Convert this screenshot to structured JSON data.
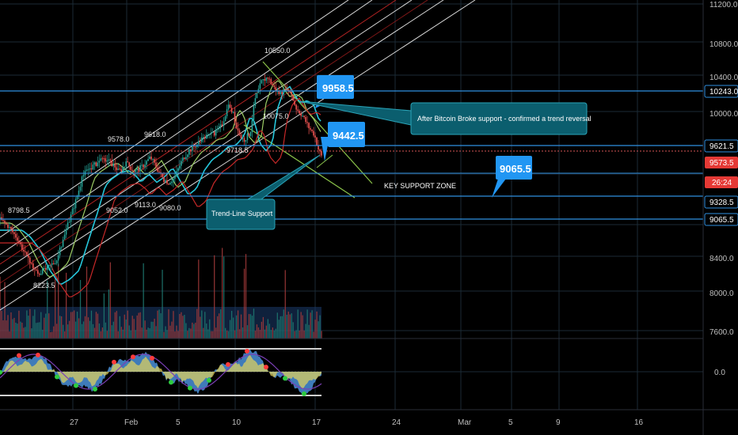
{
  "chart_data": {
    "type": "candlestick",
    "title": "",
    "xlabel": "",
    "ylabel": "",
    "ylim": [
      7500,
      11200
    ],
    "y_ticks": [
      "11200.0",
      "10800.0",
      "10400.0",
      "10000.0",
      "8400.0",
      "8000.0",
      "7600.0"
    ],
    "x_ticks": [
      "27",
      "Feb",
      "5",
      "10",
      "17",
      "24",
      "Mar",
      "5",
      "9",
      "16"
    ],
    "oscillator_tick": "0.0",
    "horizontal_levels": [
      10243.0,
      9621.5,
      9328.5,
      9065.5
    ],
    "price_axis_badges": [
      {
        "text": "10243.0",
        "style": "outline"
      },
      {
        "text": "9621.5",
        "style": "outline"
      },
      {
        "text": "9573.5",
        "style": "red"
      },
      {
        "text": "26:24",
        "style": "red"
      },
      {
        "text": "9328.5",
        "style": "outline"
      },
      {
        "text": "9065.5",
        "style": "outline"
      }
    ],
    "price_labels": [
      "8798.5",
      "9578.0",
      "9618.0",
      "9052.0",
      "9113.0",
      "9080.0",
      "9718.5",
      "10550.0",
      "10075.0",
      "8223.5"
    ],
    "callouts": [
      "9958.5",
      "9442.5",
      "9065.5"
    ],
    "notes": [
      "After Bitcoin Broke support - confirmed a trend reversal",
      "Trend-Line Support"
    ],
    "zone_label": "KEY SUPPORT ZONE",
    "colors": {
      "background": "#000000",
      "grid": "#1b2a36",
      "level_line": "#2f8fdf",
      "callout_blue": "#2196f3",
      "note_teal": "#0b5e6e",
      "candle_up": "#26a69a",
      "candle_down": "#ef5350",
      "channel_white": "#ffffff",
      "channel_red": "#b22222",
      "wedge_green": "#8bc34a",
      "badge_red": "#e53935"
    }
  }
}
